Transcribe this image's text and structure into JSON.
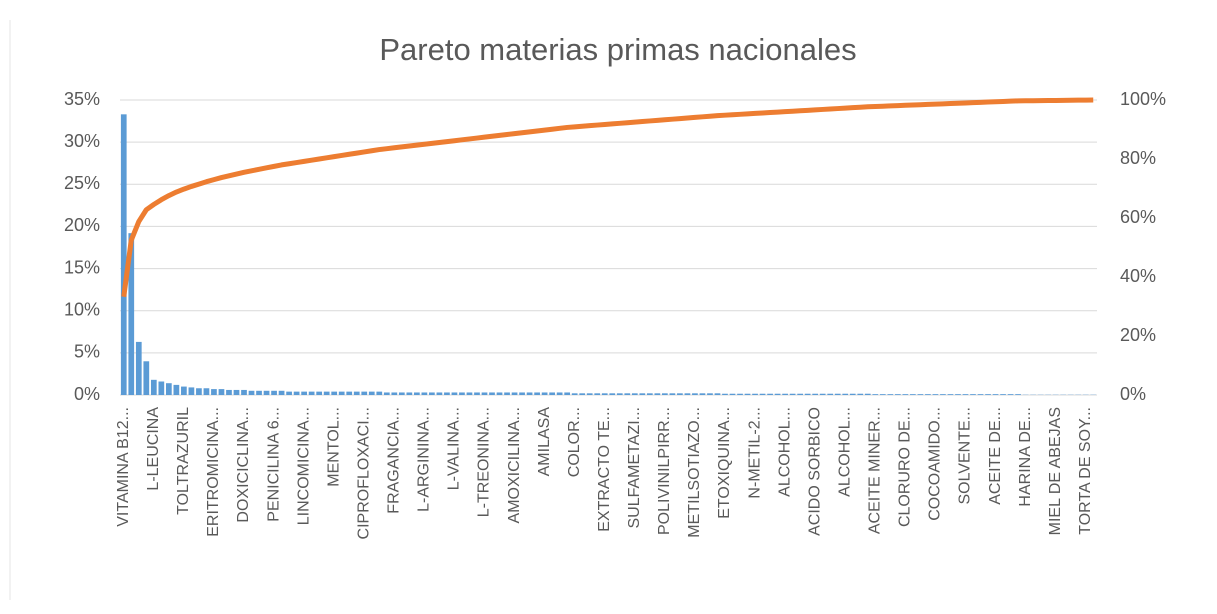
{
  "chart_data": {
    "type": "bar",
    "title": "Pareto materias primas nacionales",
    "categories": [
      "VITAMINA B12...",
      null,
      null,
      null,
      "L-LEUCINA",
      null,
      null,
      null,
      "TOLTRAZURIL",
      null,
      null,
      null,
      "ERITROMICINA...",
      null,
      null,
      null,
      "DOXICICLINA...",
      null,
      null,
      null,
      "PENICILINA 6...",
      null,
      null,
      null,
      "LINCOMICINA...",
      null,
      null,
      null,
      "MENTOL...",
      null,
      null,
      null,
      "CIPROFLOXACI...",
      null,
      null,
      null,
      "FRAGANCIA...",
      null,
      null,
      null,
      "L-ARGININA...",
      null,
      null,
      null,
      "L-VALINA...",
      null,
      null,
      null,
      "L-TREONINA...",
      null,
      null,
      null,
      "AMOXICILINA...",
      null,
      null,
      null,
      "AMILASA",
      null,
      null,
      null,
      "COLOR...",
      null,
      null,
      null,
      "EXTRACTO TE...",
      null,
      null,
      null,
      "SULFAMETAZI...",
      null,
      null,
      null,
      "POLIVINILPIRR...",
      null,
      null,
      null,
      "METILSOTIAZO...",
      null,
      null,
      null,
      "ETOXIQUINA...",
      null,
      null,
      null,
      "N-METIL-2...",
      null,
      null,
      null,
      "ALCOHOL...",
      null,
      null,
      null,
      "ACIDO SORBICO",
      null,
      null,
      null,
      "ALCOHOL...",
      null,
      null,
      null,
      "ACEITE MINER...",
      null,
      null,
      null,
      "CLORURO DE...",
      null,
      null,
      null,
      "COCOAMIDO...",
      null,
      null,
      null,
      "SOLVENTE...",
      null,
      null,
      null,
      "ACEITE DE...",
      null,
      null,
      null,
      "HARINA DE...",
      null,
      null,
      null,
      "MIEL DE ABEJAS",
      null,
      null,
      null,
      "TORTA DE SOY...",
      null
    ],
    "series": [
      {
        "type": "bar",
        "color": "#5b9bd5",
        "values": [
          33.3,
          19.2,
          6.3,
          4.0,
          1.8,
          1.6,
          1.4,
          1.2,
          1.0,
          0.9,
          0.8,
          0.8,
          0.7,
          0.7,
          0.6,
          0.6,
          0.6,
          0.5,
          0.5,
          0.5,
          0.5,
          0.5,
          0.4,
          0.4,
          0.4,
          0.4,
          0.4,
          0.4,
          0.4,
          0.4,
          0.4,
          0.4,
          0.4,
          0.4,
          0.4,
          0.3,
          0.3,
          0.3,
          0.3,
          0.3,
          0.3,
          0.3,
          0.3,
          0.3,
          0.3,
          0.3,
          0.3,
          0.3,
          0.3,
          0.3,
          0.3,
          0.3,
          0.3,
          0.3,
          0.3,
          0.3,
          0.3,
          0.3,
          0.3,
          0.3,
          0.2,
          0.2,
          0.2,
          0.2,
          0.2,
          0.2,
          0.2,
          0.2,
          0.2,
          0.2,
          0.2,
          0.2,
          0.2,
          0.2,
          0.2,
          0.2,
          0.2,
          0.2,
          0.2,
          0.2,
          0.15,
          0.15,
          0.15,
          0.15,
          0.15,
          0.15,
          0.15,
          0.15,
          0.15,
          0.15,
          0.15,
          0.15,
          0.15,
          0.15,
          0.15,
          0.15,
          0.15,
          0.15,
          0.15,
          0.15,
          0.1,
          0.1,
          0.1,
          0.1,
          0.1,
          0.1,
          0.1,
          0.1,
          0.1,
          0.1,
          0.1,
          0.1,
          0.1,
          0.1,
          0.1,
          0.1,
          0.1,
          0.1,
          0.1,
          0.1,
          0.03,
          0.03,
          0.03,
          0.03,
          0.03,
          0.03,
          0.03,
          0.03,
          0.03,
          0.03
        ]
      },
      {
        "type": "line",
        "axis": "y2",
        "color": "#ed7d31",
        "values": [
          33.3,
          52.5,
          58.8,
          62.8,
          64.6,
          66.2,
          67.6,
          68.8,
          69.8,
          70.7,
          71.5,
          72.3,
          73.0,
          73.7,
          74.3,
          74.9,
          75.5,
          76.0,
          76.5,
          77.0,
          77.5,
          78.0,
          78.4,
          78.8,
          79.2,
          79.6,
          80.0,
          80.4,
          80.8,
          81.2,
          81.6,
          82.0,
          82.4,
          82.8,
          83.2,
          83.5,
          83.8,
          84.1,
          84.4,
          84.7,
          85.0,
          85.3,
          85.6,
          85.9,
          86.2,
          86.5,
          86.8,
          87.1,
          87.4,
          87.7,
          88.0,
          88.3,
          88.6,
          88.9,
          89.2,
          89.5,
          89.8,
          90.1,
          90.4,
          90.7,
          90.9,
          91.1,
          91.3,
          91.5,
          91.7,
          91.9,
          92.1,
          92.3,
          92.5,
          92.7,
          92.9,
          93.1,
          93.3,
          93.5,
          93.7,
          93.9,
          94.1,
          94.3,
          94.5,
          94.7,
          94.85,
          95.0,
          95.15,
          95.3,
          95.45,
          95.6,
          95.75,
          95.9,
          96.05,
          96.2,
          96.35,
          96.5,
          96.65,
          96.8,
          96.95,
          97.1,
          97.25,
          97.4,
          97.55,
          97.7,
          97.8,
          97.9,
          98.0,
          98.1,
          98.2,
          98.3,
          98.4,
          98.5,
          98.6,
          98.7,
          98.8,
          98.9,
          99.0,
          99.1,
          99.2,
          99.3,
          99.4,
          99.5,
          99.6,
          99.7,
          99.73,
          99.76,
          99.79,
          99.82,
          99.85,
          99.88,
          99.91,
          99.94,
          99.97,
          100.0
        ]
      }
    ],
    "ylim": [
      0,
      35
    ],
    "yticks": [
      {
        "value": 0,
        "label": "0%"
      },
      {
        "value": 5,
        "label": "5%"
      },
      {
        "value": 10,
        "label": "10%"
      },
      {
        "value": 15,
        "label": "15%"
      },
      {
        "value": 20,
        "label": "20%"
      },
      {
        "value": 25,
        "label": "25%"
      },
      {
        "value": 30,
        "label": "30%"
      },
      {
        "value": 35,
        "label": "35%"
      }
    ],
    "y2lim": [
      0,
      100
    ],
    "y2ticks": [
      {
        "value": 0,
        "label": "0%"
      },
      {
        "value": 20,
        "label": "20%"
      },
      {
        "value": 40,
        "label": "40%"
      },
      {
        "value": 60,
        "label": "60%"
      },
      {
        "value": 80,
        "label": "80%"
      },
      {
        "value": 100,
        "label": "100%"
      }
    ],
    "grid": true
  }
}
